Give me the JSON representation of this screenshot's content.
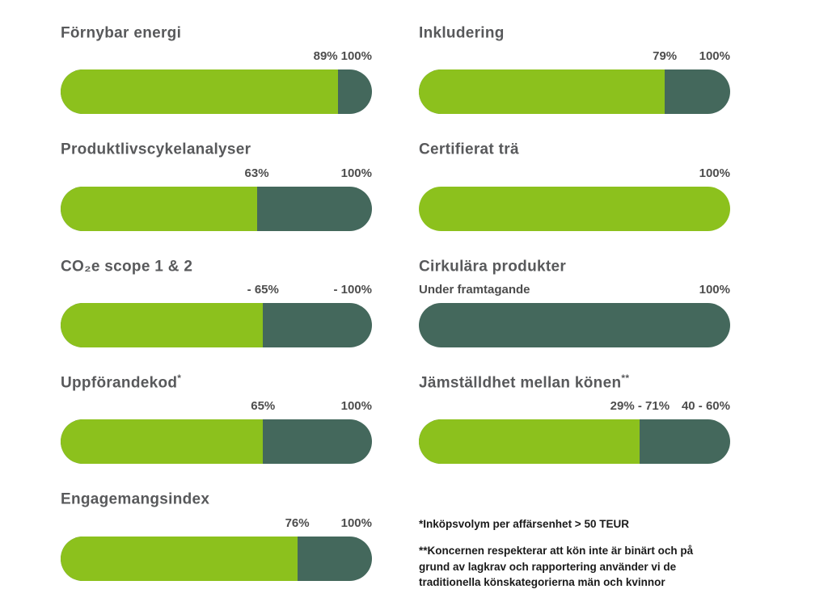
{
  "colors": {
    "progress_green": "#8CC11D",
    "remaining_dark_green": "#44685C",
    "title_text": "#58595B",
    "label_text": "#4D4D4D",
    "footnote_text": "#1A1A1A"
  },
  "chart_data": {
    "type": "bar",
    "unit": "percent",
    "description": "KPI progress bars: light green = achieved share, dark green = remaining to 100% target",
    "columns": {
      "left": [
        {
          "title": "Förnybar energi",
          "title_sup": "",
          "value_label": "89%",
          "value_align": "right",
          "target_label": "100%",
          "fill_pct": 89
        },
        {
          "title": "Produktlivscykelanalyser",
          "title_sup": "",
          "value_label": "63%",
          "target_label": "100%",
          "fill_pct": 63
        },
        {
          "title": "CO₂e scope 1 & 2",
          "title_sup": "",
          "value_label": "- 65%",
          "target_label": "- 100%",
          "fill_pct": 65
        },
        {
          "title": "Uppförandekod",
          "title_sup": "*",
          "value_label": "65%",
          "target_label": "100%",
          "fill_pct": 65
        },
        {
          "title": "Engagemangsindex",
          "title_sup": "",
          "value_label": "76%",
          "target_label": "100%",
          "fill_pct": 76
        }
      ],
      "right": [
        {
          "title": "Inkludering",
          "title_sup": "",
          "value_label": "79%",
          "target_label": "100%",
          "fill_pct": 79
        },
        {
          "title": "Certifierat trä",
          "title_sup": "",
          "value_label": "",
          "target_label": "100%",
          "fill_pct": 100
        },
        {
          "title": "Cirkulära produkter",
          "title_sup": "",
          "value_label": "",
          "status_label": "Under framtagande",
          "target_label": "100%",
          "fill_pct": 0
        },
        {
          "title": "Jämställdhet mellan könen",
          "title_sup": "**",
          "value_label": "29% - 71%",
          "target_label": "40 - 60%",
          "fill_pct": 71
        }
      ]
    }
  },
  "footnotes": [
    "*Inköpsvolym per affärsenhet > 50 TEUR",
    "**Koncernen respekterar att kön inte är binärt och på grund av lagkrav och rapportering använder vi de traditionella könskategorierna män och kvinnor"
  ]
}
